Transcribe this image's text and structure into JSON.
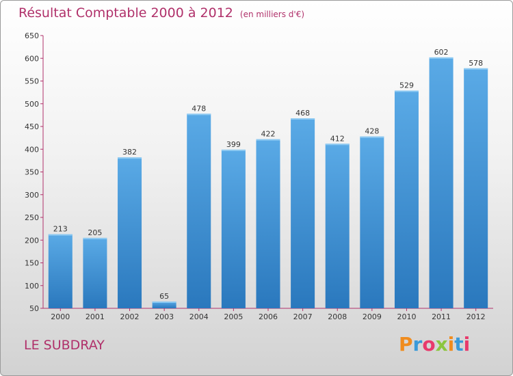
{
  "chart_data": {
    "type": "bar",
    "title": "Résultat Comptable 2000 à 2012",
    "subtitle": "(en milliers d'€)",
    "categories": [
      "2000",
      "2001",
      "2002",
      "2003",
      "2004",
      "2005",
      "2006",
      "2007",
      "2008",
      "2009",
      "2010",
      "2011",
      "2012"
    ],
    "values": [
      213,
      205,
      382,
      65,
      478,
      399,
      422,
      468,
      412,
      428,
      529,
      602,
      578
    ],
    "ylim": [
      50,
      650
    ],
    "yticks": [
      50,
      100,
      150,
      200,
      250,
      300,
      350,
      400,
      450,
      500,
      550,
      600,
      650
    ],
    "grid": false,
    "bar_color": "#3a8fd6"
  },
  "location": "LE SUBDRAY",
  "brand": {
    "letters": [
      "P",
      "r",
      "o",
      "x",
      "i",
      "t",
      "i"
    ],
    "colors": [
      "#f08c1e",
      "#3a9ad9",
      "#e83a6c",
      "#8cc63f",
      "#f08c1e",
      "#3a9ad9",
      "#e83a6c"
    ]
  }
}
